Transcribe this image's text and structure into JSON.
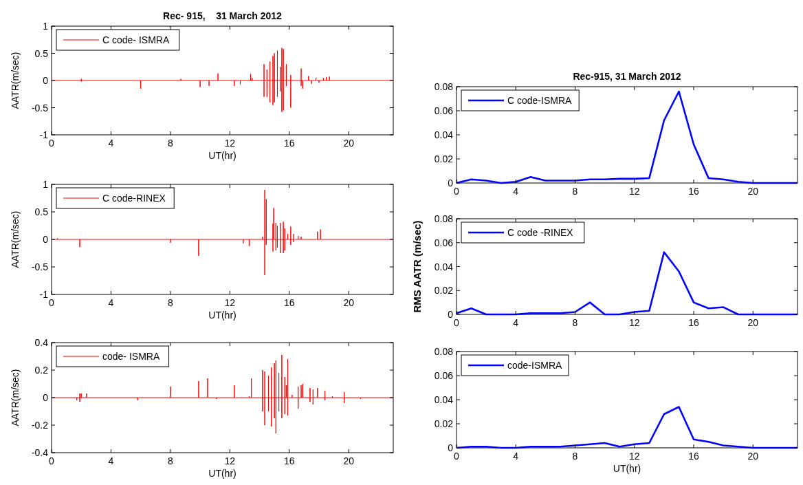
{
  "chart_data": [
    {
      "type": "line",
      "title": "Rec- 915,    31 March 2012",
      "xlabel": "UT(hr)",
      "ylabel": "AATR(m/sec)",
      "xlim": [
        0,
        23
      ],
      "ylim": [
        -1,
        1
      ],
      "xticks": [
        0,
        4,
        8,
        12,
        16,
        20
      ],
      "yticks": [
        -1,
        -0.5,
        0,
        0.5,
        1
      ],
      "legend": "top left",
      "series": [
        {
          "name": "C code- ISMRA",
          "color": "#ff0000",
          "x": [
            0,
            2,
            2,
            2,
            2,
            6,
            6,
            6,
            8.7,
            8.7,
            8.7,
            10,
            10,
            10,
            10.6,
            10.6,
            10.6,
            11.2,
            11.2,
            11.2,
            12.3,
            12.3,
            12.3,
            12.7,
            12.7,
            12.7,
            13.4,
            13.4,
            13.4,
            13.5,
            13.5,
            13.5,
            14.3,
            14.3,
            14.3,
            14.3,
            14.5,
            14.5,
            14.5,
            14.5,
            14.7,
            14.7,
            14.7,
            14.7,
            14.9,
            14.9,
            14.9,
            14.9,
            15,
            15,
            15,
            15,
            15.2,
            15.2,
            15.2,
            15.2,
            15.4,
            15.4,
            15.4,
            15.4,
            15.5,
            15.5,
            15.5,
            15.5,
            15.6,
            15.6,
            15.6,
            15.6,
            15.8,
            15.8,
            15.8,
            15.8,
            16.1,
            16.1,
            16.1,
            16.1,
            16.8,
            16.8,
            16.8,
            16.8,
            16.9,
            16.9,
            16.9,
            17.3,
            17.3,
            17.3,
            17.5,
            17.5,
            17.5,
            17.8,
            17.8,
            17.8,
            18,
            18,
            18,
            18.3,
            18.3,
            18.3,
            18.5,
            18.5,
            18.5,
            18.7,
            18.7,
            18.7,
            23
          ],
          "values": [
            0,
            0,
            0.03,
            -0.02,
            0,
            0,
            -0.15,
            0,
            0,
            0.03,
            0,
            0,
            -0.12,
            0,
            0,
            -0.1,
            0,
            0,
            0.13,
            0,
            0,
            -0.1,
            0,
            0,
            -0.07,
            0,
            0,
            0.12,
            0,
            0,
            0.05,
            0,
            0,
            0.3,
            -0.3,
            0,
            0,
            0.2,
            -0.3,
            0,
            0,
            0.35,
            -0.4,
            0,
            0,
            0.45,
            -0.45,
            0,
            0,
            0.5,
            -0.4,
            0,
            0,
            0.55,
            -0.3,
            0,
            0,
            0.25,
            -0.2,
            0,
            0,
            0.6,
            -0.58,
            0,
            0,
            0.58,
            -0.55,
            0,
            0,
            0.3,
            -0.1,
            0,
            0,
            0.1,
            -0.5,
            0,
            0,
            0.22,
            -0.1,
            0,
            0,
            -0.15,
            0,
            0,
            0.08,
            0,
            0,
            -0.06,
            0,
            0,
            0.05,
            0,
            0,
            -0.04,
            0,
            0,
            0.05,
            0,
            0,
            0.06,
            0,
            0,
            0.07,
            0,
            0
          ]
        }
      ]
    },
    {
      "type": "line",
      "xlabel": "UT(hr)",
      "ylabel": "AATR(m/sec)",
      "xlim": [
        0,
        23
      ],
      "ylim": [
        -1,
        1
      ],
      "xticks": [
        0,
        4,
        8,
        12,
        16,
        20
      ],
      "yticks": [
        -1,
        -0.5,
        0,
        0.5,
        1
      ],
      "legend": "top left",
      "series": [
        {
          "name": "C code-RINEX",
          "color": "#ff0000",
          "x": [
            0,
            0.4,
            0.4,
            0.4,
            1.9,
            1.9,
            1.9,
            8,
            8,
            8,
            9.9,
            9.9,
            9.9,
            12.9,
            12.9,
            12.9,
            13.3,
            13.3,
            13.3,
            14.2,
            14.2,
            14.2,
            14.35,
            14.35,
            14.35,
            14.35,
            14.45,
            14.45,
            14.45,
            14.45,
            14.9,
            14.9,
            14.9,
            14.9,
            14.95,
            14.95,
            14.95,
            15.1,
            15.1,
            15.1,
            15.1,
            15.2,
            15.2,
            15.2,
            15.2,
            15.4,
            15.4,
            15.4,
            15.4,
            15.6,
            15.6,
            15.6,
            15.6,
            15.7,
            15.7,
            15.7,
            15.7,
            15.9,
            15.9,
            15.9,
            16.1,
            16.1,
            16.1,
            16.1,
            16.3,
            16.3,
            16.3,
            16.3,
            16.6,
            16.6,
            16.6,
            16.8,
            16.8,
            16.8,
            17.9,
            17.9,
            17.9,
            18.1,
            18.1,
            18.1,
            23
          ],
          "values": [
            0,
            0,
            0.02,
            0,
            0,
            -0.14,
            0,
            0,
            -0.06,
            0,
            0,
            -0.3,
            0,
            0,
            -0.07,
            0,
            0,
            -0.12,
            0,
            0,
            0.05,
            0,
            0,
            0.9,
            -0.65,
            0,
            0,
            0.73,
            -0.1,
            0,
            0,
            0.29,
            -0.22,
            0,
            0,
            0.57,
            0,
            0,
            0.3,
            -0.2,
            0,
            0,
            0.25,
            -0.15,
            0,
            0,
            0.3,
            -0.25,
            0,
            0,
            0.32,
            -0.25,
            0,
            0,
            0.2,
            -0.2,
            0,
            0,
            0.1,
            0,
            0,
            0.23,
            -0.1,
            0,
            0,
            0.1,
            -0.05,
            0,
            0,
            0.06,
            0,
            0,
            0.05,
            0,
            0,
            0.14,
            0,
            0,
            0.18,
            0,
            0
          ]
        }
      ]
    },
    {
      "type": "line",
      "xlabel": "UT(hr)",
      "ylabel": "AATR(m/sec)",
      "xlim": [
        0,
        23
      ],
      "ylim": [
        -0.4,
        0.4
      ],
      "xticks": [
        0,
        4,
        8,
        12,
        16,
        20
      ],
      "yticks": [
        -0.4,
        -0.2,
        0,
        0.2,
        0.4
      ],
      "legend": "top left",
      "series": [
        {
          "name": "code- ISMRA",
          "color": "#ff0000",
          "x": [
            0,
            1.7,
            1.7,
            1.7,
            1.9,
            1.9,
            1.9,
            1.9,
            2,
            2,
            2,
            2.35,
            2.35,
            2.35,
            5.8,
            5.8,
            5.8,
            8,
            8,
            8,
            9.9,
            9.9,
            9.9,
            10.5,
            10.5,
            10.5,
            11.1,
            11.1,
            11.1,
            12.3,
            12.3,
            12.3,
            13.3,
            13.3,
            13.3,
            13.45,
            13.45,
            13.45,
            14.2,
            14.2,
            14.2,
            14.2,
            14.35,
            14.35,
            14.35,
            14.35,
            14.6,
            14.6,
            14.6,
            14.6,
            14.8,
            14.8,
            14.8,
            14.8,
            15,
            15,
            15,
            15,
            15.1,
            15.1,
            15.1,
            15.1,
            15.3,
            15.3,
            15.3,
            15.3,
            15.5,
            15.5,
            15.5,
            15.5,
            15.7,
            15.7,
            15.7,
            15.7,
            15.8,
            15.8,
            15.8,
            15.9,
            15.9,
            15.9,
            15.9,
            16.2,
            16.2,
            16.2,
            16.6,
            16.6,
            16.6,
            16.6,
            16.8,
            16.8,
            16.8,
            16.9,
            16.9,
            16.9,
            17.4,
            17.4,
            17.4,
            17.4,
            17.6,
            17.6,
            17.6,
            17.6,
            17.9,
            17.9,
            17.9,
            18.4,
            18.4,
            18.4,
            18.4,
            18.9,
            18.9,
            18.9,
            19.7,
            19.7,
            19.7,
            19.7,
            20.8,
            20.8,
            20.8,
            23
          ],
          "values": [
            0,
            0,
            -0.02,
            0,
            0,
            0.03,
            -0.03,
            0,
            0,
            0.03,
            0,
            0,
            0.03,
            0,
            0,
            -0.02,
            0,
            0,
            0.08,
            0,
            0,
            0.12,
            0,
            0,
            0.14,
            0,
            0,
            -0.01,
            0,
            0,
            0.09,
            0,
            0,
            0.01,
            0,
            0,
            0.14,
            0,
            0,
            0.2,
            -0.1,
            0,
            0,
            0.19,
            -0.2,
            0,
            0,
            0.16,
            -0.1,
            0,
            0,
            0.22,
            -0.21,
            0,
            0,
            0.25,
            -0.15,
            0,
            0,
            0.27,
            -0.26,
            0,
            0,
            0.18,
            -0.1,
            0,
            0,
            0.31,
            -0.15,
            0,
            0,
            0.15,
            -0.12,
            0,
            0,
            0.09,
            0,
            0,
            0.28,
            -0.13,
            0,
            0,
            0.02,
            0,
            0,
            0.08,
            -0.08,
            0,
            0,
            0.09,
            0,
            0,
            0.1,
            0,
            0,
            0.07,
            -0.03,
            0,
            0,
            0.06,
            -0.05,
            0,
            0,
            0.07,
            0,
            0,
            0.05,
            -0.02,
            0,
            0,
            0.01,
            0,
            0,
            0.04,
            -0.04,
            0,
            0,
            -0.01,
            0,
            0
          ]
        }
      ]
    },
    {
      "type": "line",
      "title": "Rec-915, 31 March 2012",
      "xlim": [
        0,
        23
      ],
      "ylim": [
        0,
        0.08
      ],
      "xticks": [
        0,
        4,
        8,
        12,
        16,
        20
      ],
      "yticks": [
        0,
        0.02,
        0.04,
        0.06,
        0.08
      ],
      "legend": "top left",
      "series": [
        {
          "name": "C code-ISMRA",
          "color": "#0000ff",
          "x": [
            0,
            1,
            2,
            3,
            4,
            5,
            6,
            7,
            8,
            9,
            10,
            11,
            12,
            13,
            14,
            15,
            16,
            17,
            18,
            19,
            20,
            21,
            22,
            23
          ],
          "values": [
            0,
            0.003,
            0.002,
            0,
            0.001,
            0.005,
            0.002,
            0.002,
            0.002,
            0.003,
            0.003,
            0.0035,
            0.0035,
            0.004,
            0.052,
            0.076,
            0.032,
            0.004,
            0.003,
            0.001,
            0,
            0,
            0,
            0
          ]
        }
      ]
    },
    {
      "type": "line",
      "ylabel": "RMS AATR (m/sec)",
      "xlim": [
        0,
        23
      ],
      "ylim": [
        0,
        0.08
      ],
      "xticks": [
        0,
        4,
        8,
        12,
        16,
        20
      ],
      "yticks": [
        0,
        0.02,
        0.04,
        0.06,
        0.08
      ],
      "legend": "top left",
      "series": [
        {
          "name": "C code -RINEX",
          "color": "#0000ff",
          "x": [
            0,
            1,
            2,
            3,
            4,
            5,
            6,
            7,
            8,
            9,
            10,
            11,
            12,
            13,
            14,
            15,
            16,
            17,
            18,
            19,
            20,
            21,
            22,
            23
          ],
          "values": [
            0.001,
            0.005,
            0,
            0,
            0,
            0.001,
            0.001,
            0.001,
            0.002,
            0.01,
            0,
            0,
            0.002,
            0.003,
            0.052,
            0.036,
            0.01,
            0.005,
            0.006,
            0,
            0,
            0,
            0,
            0
          ]
        }
      ]
    },
    {
      "type": "line",
      "xlabel": "UT(hr)",
      "xlim": [
        0,
        23
      ],
      "ylim": [
        0,
        0.08
      ],
      "xticks": [
        0,
        4,
        8,
        12,
        16,
        20
      ],
      "yticks": [
        0,
        0.02,
        0.04,
        0.06,
        0.08
      ],
      "legend": "top left",
      "series": [
        {
          "name": "code-ISMRA",
          "color": "#0000ff",
          "x": [
            0,
            1,
            2,
            3,
            4,
            5,
            6,
            7,
            8,
            9,
            10,
            11,
            12,
            13,
            14,
            15,
            16,
            17,
            18,
            19,
            20,
            21,
            22,
            23
          ],
          "values": [
            0,
            0.001,
            0.001,
            0,
            0,
            0.001,
            0.001,
            0.001,
            0.002,
            0.003,
            0.004,
            0.001,
            0.003,
            0.004,
            0.028,
            0.034,
            0.007,
            0.005,
            0.002,
            0.001,
            0,
            0,
            0,
            0
          ]
        }
      ]
    }
  ]
}
